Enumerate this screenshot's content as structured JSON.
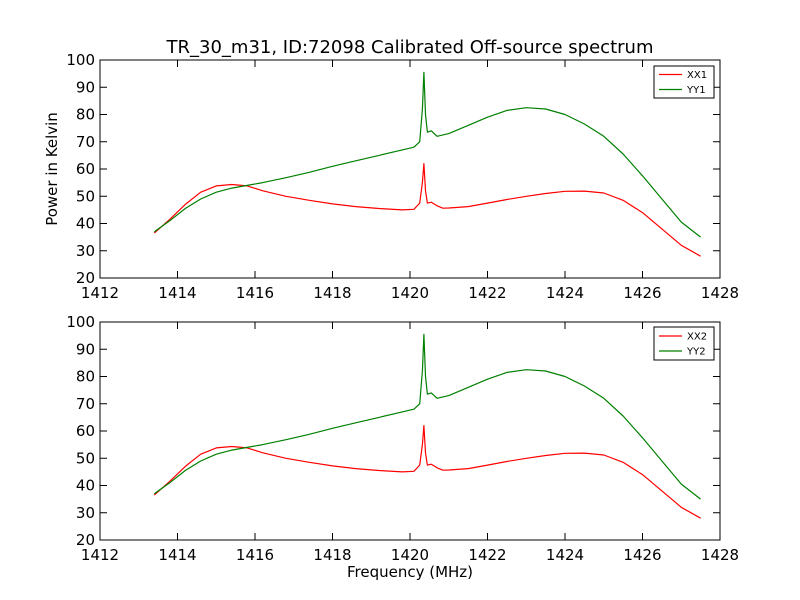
{
  "chart_data": {
    "title": "TR_30_m31, ID:72098 Calibrated Off-source spectrum",
    "type": "line",
    "subplots": [
      {
        "xlabel": "",
        "ylabel": "Power in Kelvin",
        "xlim": [
          1412,
          1428
        ],
        "ylim": [
          20,
          100
        ],
        "xticks": [
          1412,
          1414,
          1416,
          1418,
          1420,
          1422,
          1424,
          1426,
          1428
        ],
        "yticks": [
          20,
          30,
          40,
          50,
          60,
          70,
          80,
          90,
          100
        ],
        "legend_position": "top-right",
        "series": [
          {
            "name": "XX1",
            "color": "#ff0000",
            "x": [
              1413.4,
              1413.8,
              1414.2,
              1414.6,
              1415.0,
              1415.4,
              1415.8,
              1416.2,
              1416.8,
              1417.4,
              1418.0,
              1418.6,
              1419.2,
              1419.8,
              1420.1,
              1420.25,
              1420.32,
              1420.36,
              1420.4,
              1420.45,
              1420.55,
              1420.7,
              1420.85,
              1421.0,
              1421.5,
              1422.0,
              1422.5,
              1423.0,
              1423.5,
              1424.0,
              1424.5,
              1425.0,
              1425.5,
              1426.0,
              1426.5,
              1427.0,
              1427.5
            ],
            "y": [
              36.5,
              41.5,
              47.0,
              51.5,
              53.8,
              54.3,
              53.8,
              52.0,
              50.0,
              48.5,
              47.2,
              46.2,
              45.5,
              45.0,
              45.2,
              47.5,
              55.0,
              62.0,
              52.0,
              47.5,
              47.8,
              46.5,
              45.6,
              45.7,
              46.2,
              47.5,
              48.8,
              50.0,
              51.0,
              51.8,
              51.9,
              51.2,
              48.5,
              44.0,
              38.0,
              32.0,
              28.0
            ]
          },
          {
            "name": "YY1",
            "color": "#008000",
            "x": [
              1413.4,
              1413.8,
              1414.2,
              1414.6,
              1415.0,
              1415.4,
              1415.8,
              1416.2,
              1416.8,
              1417.4,
              1418.0,
              1418.6,
              1419.2,
              1419.8,
              1420.1,
              1420.25,
              1420.32,
              1420.36,
              1420.4,
              1420.45,
              1420.55,
              1420.7,
              1420.85,
              1421.0,
              1421.5,
              1422.0,
              1422.5,
              1423.0,
              1423.5,
              1424.0,
              1424.5,
              1425.0,
              1425.5,
              1426.0,
              1426.5,
              1427.0,
              1427.5
            ],
            "y": [
              37.0,
              41.0,
              45.5,
              49.0,
              51.5,
              53.0,
              54.0,
              55.0,
              56.8,
              58.8,
              61.0,
              63.0,
              65.0,
              67.0,
              68.0,
              70.0,
              82.0,
              95.5,
              80.0,
              73.5,
              74.0,
              72.0,
              72.5,
              73.0,
              76.0,
              79.0,
              81.5,
              82.5,
              82.0,
              80.0,
              76.5,
              72.0,
              65.5,
              57.5,
              49.0,
              40.5,
              35.0
            ]
          }
        ]
      },
      {
        "xlabel": "Frequency (MHz)",
        "ylabel": "",
        "xlim": [
          1412,
          1428
        ],
        "ylim": [
          20,
          100
        ],
        "xticks": [
          1412,
          1414,
          1416,
          1418,
          1420,
          1422,
          1424,
          1426,
          1428
        ],
        "yticks": [
          20,
          30,
          40,
          50,
          60,
          70,
          80,
          90,
          100
        ],
        "legend_position": "top-right",
        "series": [
          {
            "name": "XX2",
            "color": "#ff0000",
            "x": [
              1413.4,
              1413.8,
              1414.2,
              1414.6,
              1415.0,
              1415.4,
              1415.8,
              1416.2,
              1416.8,
              1417.4,
              1418.0,
              1418.6,
              1419.2,
              1419.8,
              1420.1,
              1420.25,
              1420.32,
              1420.36,
              1420.4,
              1420.45,
              1420.55,
              1420.7,
              1420.85,
              1421.0,
              1421.5,
              1422.0,
              1422.5,
              1423.0,
              1423.5,
              1424.0,
              1424.5,
              1425.0,
              1425.5,
              1426.0,
              1426.5,
              1427.0,
              1427.5
            ],
            "y": [
              36.5,
              41.5,
              47.0,
              51.5,
              53.8,
              54.3,
              53.8,
              52.0,
              50.0,
              48.5,
              47.2,
              46.2,
              45.5,
              45.0,
              45.2,
              47.5,
              55.0,
              62.0,
              52.0,
              47.5,
              47.8,
              46.5,
              45.6,
              45.7,
              46.2,
              47.5,
              48.8,
              50.0,
              51.0,
              51.8,
              51.9,
              51.2,
              48.5,
              44.0,
              38.0,
              32.0,
              28.0
            ]
          },
          {
            "name": "YY2",
            "color": "#008000",
            "x": [
              1413.4,
              1413.8,
              1414.2,
              1414.6,
              1415.0,
              1415.4,
              1415.8,
              1416.2,
              1416.8,
              1417.4,
              1418.0,
              1418.6,
              1419.2,
              1419.8,
              1420.1,
              1420.25,
              1420.32,
              1420.36,
              1420.4,
              1420.45,
              1420.55,
              1420.7,
              1420.85,
              1421.0,
              1421.5,
              1422.0,
              1422.5,
              1423.0,
              1423.5,
              1424.0,
              1424.5,
              1425.0,
              1425.5,
              1426.0,
              1426.5,
              1427.0,
              1427.5
            ],
            "y": [
              37.0,
              41.0,
              45.5,
              49.0,
              51.5,
              53.0,
              54.0,
              55.0,
              56.8,
              58.8,
              61.0,
              63.0,
              65.0,
              67.0,
              68.0,
              70.0,
              82.0,
              95.5,
              80.0,
              73.5,
              74.0,
              72.0,
              72.5,
              73.0,
              76.0,
              79.0,
              81.5,
              82.5,
              82.0,
              80.0,
              76.5,
              72.0,
              65.5,
              57.5,
              49.0,
              40.5,
              35.0
            ]
          }
        ]
      }
    ]
  }
}
